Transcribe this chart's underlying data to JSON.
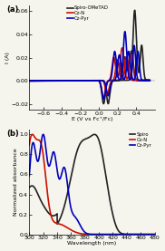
{
  "panel_a": {
    "title": "(a)",
    "xlabel": "E (V vs Fc⁺/Fc)",
    "ylabel": "I (A)",
    "xlim": [
      -0.75,
      0.6
    ],
    "ylim": [
      -0.025,
      0.065
    ],
    "yticks": [
      -0.02,
      0.0,
      0.02,
      0.04,
      0.06
    ],
    "xticks": [
      -0.6,
      -0.4,
      -0.2,
      0.0,
      0.2,
      0.4
    ],
    "legend": [
      "Spiro-OMeTAD",
      "Cz-N",
      "Cz-Pyr"
    ],
    "colors": [
      "#222222",
      "#cc1100",
      "#0000bb"
    ],
    "linewidths": [
      1.2,
      1.2,
      1.2
    ]
  },
  "panel_b": {
    "title": "(b)",
    "xlabel": "Wavelength (nm)",
    "ylabel": "Normalized absorbance",
    "xlim": [
      300,
      480
    ],
    "ylim": [
      0.0,
      1.05
    ],
    "yticks": [
      0.0,
      0.2,
      0.4,
      0.6,
      0.8,
      1.0
    ],
    "xticks": [
      300,
      320,
      340,
      360,
      380,
      400,
      420,
      440,
      460,
      480
    ],
    "legend": [
      "Spiro",
      "Cz-N",
      "Cz-Pyr"
    ],
    "colors": [
      "#222222",
      "#cc1100",
      "#0000bb"
    ],
    "linewidths": [
      1.2,
      1.2,
      1.2
    ]
  },
  "background_color": "#f5f5ee"
}
